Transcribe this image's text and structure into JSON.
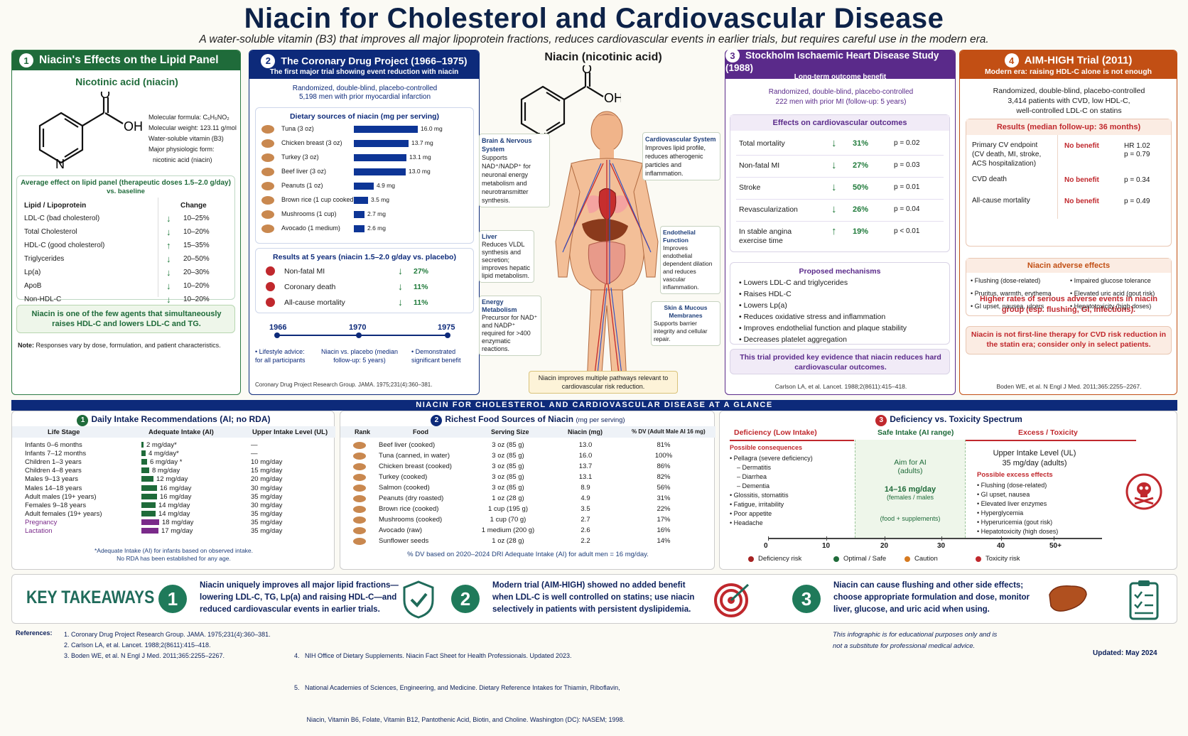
{
  "title": "Niacin for Cholesterol and Cardiovascular Disease",
  "subtitle": "A water-soluble vitamin (B3) that improves all major lipoprotein fractions, reduces cardiovascular events in earlier trials, but requires careful use in the modern era.",
  "p1": {
    "num": "1",
    "title": "Niacin's Effects on the Lipid Panel",
    "mol_title": "Nicotinic acid (niacin)",
    "facts": [
      "Molecular formula: C₆H₅NO₂",
      "Molecular weight: 123.11 g/mol",
      "Water-soluble vitamin (B3)",
      "Major physiologic form:"
    ],
    "fact_extra": "nicotinic acid (niacin)",
    "avg_title": "Average effect on lipid panel (therapeutic doses 1.5–2.0 g/day)",
    "avg_sub": "vs. baseline",
    "col1": "Lipid / Lipoprotein",
    "col2": "Change",
    "rows": [
      {
        "name": "LDL-C (bad cholesterol)",
        "dir": "↓",
        "val": "10–25%"
      },
      {
        "name": "Total Cholesterol",
        "dir": "↓",
        "val": "10–20%"
      },
      {
        "name": "HDL-C (good cholesterol)",
        "dir": "↑",
        "val": "15–35%"
      },
      {
        "name": "Triglycerides",
        "dir": "↓",
        "val": "20–50%"
      },
      {
        "name": "Lp(a)",
        "dir": "↓",
        "val": "20–30%"
      },
      {
        "name": "ApoB",
        "dir": "↓",
        "val": "10–20%"
      },
      {
        "name": "Non-HDL-C",
        "dir": "↓",
        "val": "10–20%"
      }
    ],
    "callout": "Niacin is one of the few agents that simultaneously raises HDL-C and lowers LDL-C and TG.",
    "note_label": "Note:",
    "note": "Responses vary by dose, formulation, and patient characteristics."
  },
  "p2": {
    "num": "2",
    "title": "The Coronary Drug Project (1966–1975)",
    "sub": "The first major trial showing event reduction with niacin",
    "design1": "Randomized, double-blind, placebo-controlled",
    "design2": "5,198 men with prior myocardial infarction",
    "diet_title": "Dietary sources of niacin (mg per serving)",
    "foods": [
      {
        "name": "Tuna (3 oz)",
        "val": 16.0,
        "label": "16.0 mg"
      },
      {
        "name": "Chicken breast (3 oz)",
        "val": 13.7,
        "label": "13.7 mg"
      },
      {
        "name": "Turkey (3 oz)",
        "val": 13.1,
        "label": "13.1 mg"
      },
      {
        "name": "Beef liver (3 oz)",
        "val": 13.0,
        "label": "13.0 mg"
      },
      {
        "name": "Peanuts (1 oz)",
        "val": 4.9,
        "label": "4.9 mg"
      },
      {
        "name": "Brown rice (1 cup cooked)",
        "val": 3.5,
        "label": "3.5 mg"
      },
      {
        "name": "Mushrooms (1 cup)",
        "val": 2.7,
        "label": "2.7 mg"
      },
      {
        "name": "Avocado (1 medium)",
        "val": 2.6,
        "label": "2.6 mg"
      }
    ],
    "results_title": "Results at 5 years (niacin 1.5–2.0 g/day vs. placebo)",
    "results": [
      {
        "name": "Non-fatal MI",
        "val": "27%"
      },
      {
        "name": "Coronary death",
        "val": "11%"
      },
      {
        "name": "All-cause mortality",
        "val": "11%"
      }
    ],
    "years": [
      "1966",
      "1970",
      "1975"
    ],
    "tl": [
      "• Lifestyle advice: for all participants",
      "Niacin vs. placebo (median follow-up: 5 years)",
      "• Demonstrated significant benefit"
    ],
    "ref": "Coronary Drug Project Research Group. JAMA. 1975;231(4):360–381."
  },
  "center": {
    "title": "Niacin (nicotinic acid)",
    "brain_t": "Brain & Nervous System",
    "brain": "Supports NAD⁺/NADP⁺ for neuronal energy metabolism and neurotransmitter synthesis.",
    "cv_t": "Cardiovascular System",
    "cv": "Improves lipid profile, reduces atherogenic particles and inflammation.",
    "liver_t": "Liver",
    "liver": "Reduces VLDL synthesis and secretion; improves hepatic lipid metabolism.",
    "endo_t": "Endothelial Function",
    "endo": "Improves endothelial dependent dilation and reduces vascular inflammation.",
    "energy_t": "Energy Metabolism",
    "energy": "Precursor for NAD⁺ and NADP⁺ required for >400 enzymatic reactions.",
    "skin_t": "Skin & Mucous Membranes",
    "skin": "Supports barrier integrity and cellular repair.",
    "banner": "Niacin improves multiple pathways relevant to cardiovascular risk reduction."
  },
  "p3": {
    "num": "3",
    "title": "Stockholm Ischaemic Heart Disease Study (1988)",
    "sub": "Long-term outcome benefit",
    "design1": "Randomized, double-blind, placebo-controlled",
    "design2": "222 men with prior MI (follow-up: 5 years)",
    "eff_title": "Effects on cardiovascular outcomes",
    "rows": [
      {
        "name": "Total mortality",
        "dir": "↓",
        "val": "31%",
        "p": "p = 0.02"
      },
      {
        "name": "Non-fatal MI",
        "dir": "↓",
        "val": "27%",
        "p": "p = 0.03"
      },
      {
        "name": "Stroke",
        "dir": "↓",
        "val": "50%",
        "p": "p = 0.01"
      },
      {
        "name": "Revascularization",
        "dir": "↓",
        "val": "26%",
        "p": "p = 0.04"
      },
      {
        "name": "In stable angina exercise time",
        "dir": "↑",
        "val": "19%",
        "p": "p < 0.01"
      }
    ],
    "mech_title": "Proposed mechanisms",
    "mech": [
      "Lowers LDL-C and triglycerides",
      "Raises HDL-C",
      "Lowers Lp(a)",
      "Reduces oxidative stress and inflammation",
      "Improves endothelial function and plaque stability",
      "Decreases platelet aggregation"
    ],
    "callout": "This trial provided key evidence that niacin reduces hard cardiovascular outcomes.",
    "ref": "Carlson LA, et al. Lancet. 1988;2(8611):415–418."
  },
  "p4": {
    "num": "4",
    "title": "AIM-HIGH Trial (2011)",
    "sub": "Modern era: raising HDL-C alone is not enough",
    "design1": "Randomized, double-blind, placebo-controlled",
    "design2": "3,414 patients with CVD, low HDL-C,",
    "design3": "well-controlled LDL-C on statins",
    "res_title": "Results (median follow-up: 36 months)",
    "rows": [
      {
        "name": "Primary CV endpoint (CV death, MI, stroke, ACS hospitalization)",
        "val": "No benefit",
        "p": "HR 1.02\np = 0.79"
      },
      {
        "name": "CVD death",
        "val": "No benefit",
        "p": "p = 0.34"
      },
      {
        "name": "All-cause mortality",
        "val": "No benefit",
        "p": "p = 0.49"
      }
    ],
    "warn": "Higher rates of serious adverse events in niacin group (esp. flushing, GI, infections).",
    "adv_title": "Niacin adverse effects",
    "adv_l": [
      "Flushing (dose-related)",
      "Pruritus, warmth, erythema",
      "GI upset, nausea, ulcers"
    ],
    "adv_r": [
      "Impaired glucose tolerance",
      "Elevated uric acid (gout risk)",
      "Hepatotoxicity (high doses)"
    ],
    "callout": "Niacin is not first-line therapy for CVD risk reduction in the statin era; consider only in select patients.",
    "ref": "Boden WE, et al. N Engl J Med. 2011;365:2255–2267."
  },
  "glance": "NIACIN FOR CHOLESTEROL AND CARDIOVASCULAR DISEASE AT A GLANCE",
  "g1": {
    "num": "1",
    "title": "Daily Intake Recommendations (AI; no RDA)",
    "cols": [
      "Life Stage",
      "Adequate Intake (AI)",
      "Upper Intake Level (UL)"
    ],
    "rows": [
      {
        "stage": "Infants 0–6 months",
        "ai": 2,
        "ai_l": "2 mg/day*",
        "ul": "—"
      },
      {
        "stage": "Infants 7–12 months",
        "ai": 4,
        "ai_l": "4 mg/day*",
        "ul": "—"
      },
      {
        "stage": "Children 1–3 years",
        "ai": 6,
        "ai_l": "6 mg/day *",
        "ul": "10 mg/day"
      },
      {
        "stage": "Children 4–8 years",
        "ai": 8,
        "ai_l": "8 mg/day",
        "ul": "15 mg/day"
      },
      {
        "stage": "Males 9–13 years",
        "ai": 12,
        "ai_l": "12 mg/day",
        "ul": "20 mg/day"
      },
      {
        "stage": "Males 14–18 years",
        "ai": 16,
        "ai_l": "16 mg/day",
        "ul": "30 mg/day"
      },
      {
        "stage": "Adult males (19+ years)",
        "ai": 16,
        "ai_l": "16 mg/day",
        "ul": "35 mg/day"
      },
      {
        "stage": "Females 9–18 years",
        "ai": 14,
        "ai_l": "14 mg/day",
        "ul": "30 mg/day"
      },
      {
        "stage": "Adult females (19+ years)",
        "ai": 14,
        "ai_l": "14 mg/day",
        "ul": "35 mg/day"
      },
      {
        "stage": "Pregnancy",
        "ai": 18,
        "ai_l": "18 mg/day",
        "ul": "35 mg/day"
      },
      {
        "stage": "Lactation",
        "ai": 17,
        "ai_l": "17 mg/day",
        "ul": "35 mg/day"
      }
    ],
    "foot1": "*Adequate Intake (AI) for infants based on observed intake.",
    "foot2": "No RDA has been established for any age."
  },
  "g2": {
    "num": "2",
    "title": "Richest Food Sources of Niacin",
    "title2": "(mg per serving)",
    "cols": [
      "Rank",
      "Food",
      "Serving Size",
      "Niacin (mg)",
      "% DV (Adult Male AI 16 mg)"
    ],
    "rows": [
      {
        "food": "Beef liver (cooked)",
        "size": "3 oz (85 g)",
        "mg": "13.0",
        "dv": "81%"
      },
      {
        "food": "Tuna (canned, in water)",
        "size": "3 oz (85 g)",
        "mg": "16.0",
        "dv": "100%"
      },
      {
        "food": "Chicken breast (cooked)",
        "size": "3 oz (85 g)",
        "mg": "13.7",
        "dv": "86%"
      },
      {
        "food": "Turkey (cooked)",
        "size": "3 oz (85 g)",
        "mg": "13.1",
        "dv": "82%"
      },
      {
        "food": "Salmon (cooked)",
        "size": "3 oz (85 g)",
        "mg": "8.9",
        "dv": "56%"
      },
      {
        "food": "Peanuts (dry roasted)",
        "size": "1 oz (28 g)",
        "mg": "4.9",
        "dv": "31%"
      },
      {
        "food": "Brown rice (cooked)",
        "size": "1 cup (195 g)",
        "mg": "3.5",
        "dv": "22%"
      },
      {
        "food": "Mushrooms (cooked)",
        "size": "1 cup (70 g)",
        "mg": "2.7",
        "dv": "17%"
      },
      {
        "food": "Avocado (raw)",
        "size": "1 medium (200 g)",
        "mg": "2.6",
        "dv": "16%"
      },
      {
        "food": "Sunflower seeds",
        "size": "1 oz (28 g)",
        "mg": "2.2",
        "dv": "14%"
      }
    ],
    "foot": "% DV based on 2020–2024 DRI Adequate Intake (AI) for adult men = 16 mg/day."
  },
  "g3": {
    "num": "3",
    "title": "Deficiency vs. Toxicity Spectrum",
    "def": "Deficiency (Low Intake)",
    "safe": "Safe Intake (AI range)",
    "exc": "Excess / Toxicity",
    "poss": "Possible consequences",
    "def_items": [
      "• Pellagra (severe deficiency)",
      "– Dermatitis",
      "– Diarrhea",
      "– Dementia",
      "• Glossitis, stomatitis",
      "• Fatigue, irritability",
      "• Poor appetite",
      "• Headache"
    ],
    "aim": "Aim for AI",
    "aim2": "(adults)",
    "range": "14–16 mg/day",
    "range2": "(females / males",
    "food": "(food + supplements)",
    "ul": "Upper Intake Level (UL)",
    "ul2": "35 mg/day (adults)",
    "exc_title": "Possible excess effects",
    "exc_items": [
      "• Flushing (dose-related)",
      "• GI upset, nausea",
      "• Elevated liver enzymes",
      "• Hyperglycemia",
      "• Hyperuricemia (gout risk)",
      "• Hepatotoxicity (high doses)"
    ],
    "ticks": [
      "0",
      "10",
      "20",
      "30",
      "40",
      "50+"
    ],
    "legend": [
      "Deficiency risk",
      "Optimal / Safe",
      "Caution",
      "Toxicity risk"
    ]
  },
  "takeaways": {
    "title": "KEY TAKEAWAYS",
    "items": [
      "Niacin uniquely improves all major lipid fractions—lowering LDL-C, TG, Lp(a) and raising HDL-C—and reduced cardiovascular events in earlier trials.",
      "Modern trial (AIM-HIGH) showed no added benefit when LDL-C is well controlled on statins; use niacin selectively in patients with persistent dyslipidemia.",
      "Niacin can cause flushing and other side effects; choose appropriate formulation and dose, monitor liver, glucose, and uric acid when using."
    ]
  },
  "refs": {
    "label": "References:",
    "items": [
      "1.   Coronary Drug Project Research Group. JAMA. 1975;231(4):360–381.",
      "2.   Carlson LA, et al. Lancet. 1988;2(8611):415–418.",
      "3.   Boden WE, et al. N Engl J Med. 2011;365:2255–2267.",
      "4.   NIH Office of Dietary Supplements. Niacin Fact Sheet for Health Professionals. Updated 2023.",
      "5.   National Academies of Sciences, Engineering, and Medicine. Dietary Reference Intakes for Thiamin, Riboflavin,",
      "       Niacin, Vitamin B6, Folate, Vitamin B12, Pantothenic Acid, Biotin, and Choline. Washington (DC): NASEM; 1998."
    ],
    "disclaimer1": "This infographic is for educational purposes only and is",
    "disclaimer2": "not a substitute for professional medical advice.",
    "updated": "Updated: May 2024"
  },
  "colors": {
    "navy": "#0d2a7a",
    "green": "#1f6b3a",
    "purple": "#5a2a8a",
    "orange": "#c24f14"
  }
}
